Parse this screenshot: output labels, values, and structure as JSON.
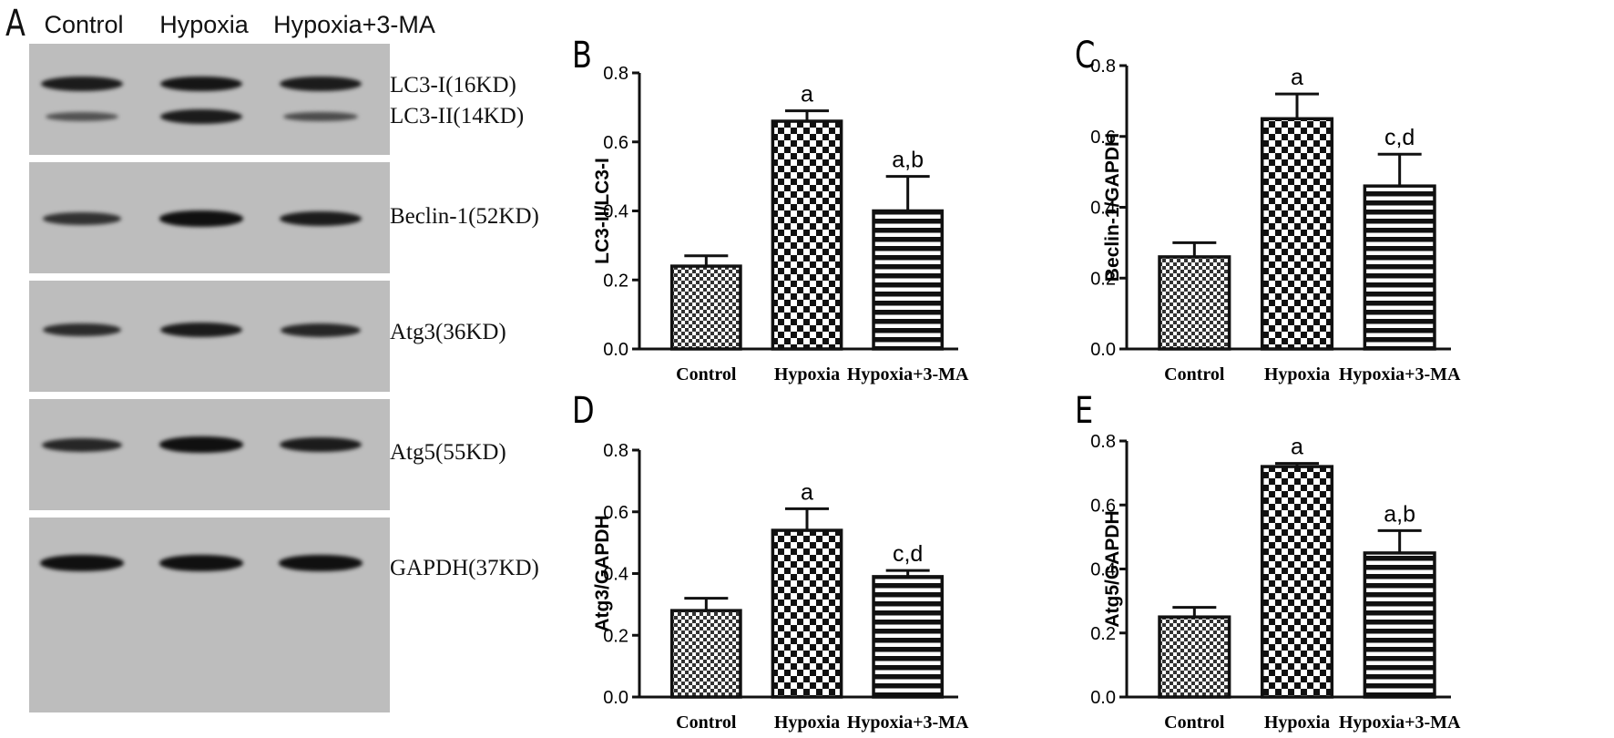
{
  "panel_a": {
    "letter": "A",
    "lanes": [
      "Control",
      "Hypoxia",
      "Hypoxia+3-MA"
    ],
    "bands": [
      {
        "label": "LC3-I(16KD)",
        "strip": 0,
        "intensity": [
          0.85,
          0.9,
          0.85
        ]
      },
      {
        "label": "LC3-II(14KD)",
        "strip": 0,
        "intensity": [
          0.35,
          0.85,
          0.4
        ]
      },
      {
        "label": "Beclin-1(52KD)",
        "strip": 1,
        "intensity": [
          0.65,
          0.95,
          0.85
        ]
      },
      {
        "label": "Atg3(36KD)",
        "strip": 2,
        "intensity": [
          0.7,
          0.85,
          0.75
        ]
      },
      {
        "label": "Atg5(55KD)",
        "strip": 3,
        "intensity": [
          0.75,
          0.95,
          0.85
        ]
      },
      {
        "label": "GAPDH(37KD)",
        "strip": 4,
        "intensity": [
          0.95,
          0.95,
          0.95
        ]
      }
    ]
  },
  "chart_data": [
    {
      "panel": "B",
      "type": "bar",
      "categories": [
        "Control",
        "Hypoxia",
        "Hypoxia+3-MA"
      ],
      "values": [
        0.24,
        0.66,
        0.4
      ],
      "errors": [
        0.03,
        0.03,
        0.1
      ],
      "annotations": [
        "",
        "a",
        "a,b"
      ],
      "ylabel": "LC3-II/LC3-I",
      "ylim": [
        0,
        0.8
      ],
      "yticks": [
        "0.0",
        "0.2",
        "0.4",
        "0.6",
        "0.8"
      ]
    },
    {
      "panel": "C",
      "type": "bar",
      "categories": [
        "Control",
        "Hypoxia",
        "Hypoxia+3-MA"
      ],
      "values": [
        0.26,
        0.65,
        0.46
      ],
      "errors": [
        0.04,
        0.07,
        0.09
      ],
      "annotations": [
        "",
        "a",
        "c,d"
      ],
      "ylabel": "Beclin-1/GAPDH",
      "ylim": [
        0,
        0.8
      ],
      "yticks": [
        "0.0",
        "0.2",
        "0.4",
        "0.6",
        "0.8"
      ]
    },
    {
      "panel": "D",
      "type": "bar",
      "categories": [
        "Control",
        "Hypoxia",
        "Hypoxia+3-MA"
      ],
      "values": [
        0.28,
        0.54,
        0.39
      ],
      "errors": [
        0.04,
        0.07,
        0.02
      ],
      "annotations": [
        "",
        "a",
        "c,d"
      ],
      "ylabel": "Atg3/GAPDH",
      "ylim": [
        0,
        0.8
      ],
      "yticks": [
        "0.0",
        "0.2",
        "0.4",
        "0.6",
        "0.8"
      ]
    },
    {
      "panel": "E",
      "type": "bar",
      "categories": [
        "Control",
        "Hypoxia",
        "Hypoxia+3-MA"
      ],
      "values": [
        0.25,
        0.72,
        0.45
      ],
      "errors": [
        0.03,
        0.01,
        0.07
      ],
      "annotations": [
        "",
        "a",
        "a,b"
      ],
      "ylabel": "Atg5/GAPDH",
      "ylim": [
        0,
        0.8
      ],
      "yticks": [
        "0.0",
        "0.2",
        "0.4",
        "0.6",
        "0.8"
      ]
    }
  ]
}
